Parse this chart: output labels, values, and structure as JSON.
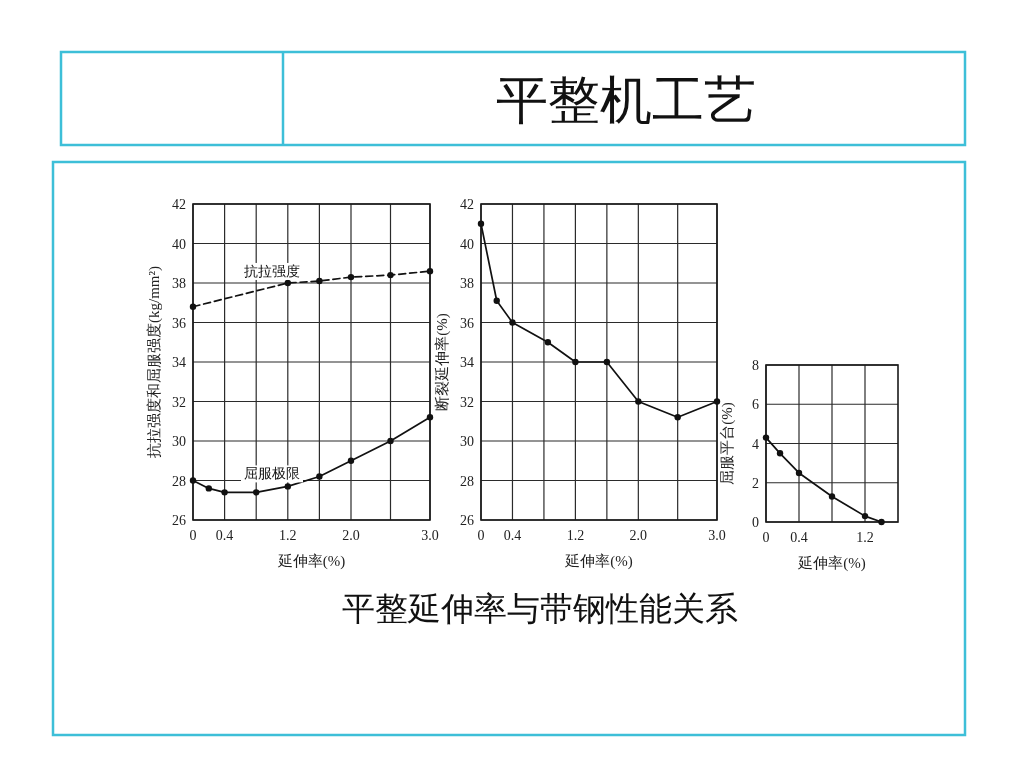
{
  "chart_data": [
    {
      "type": "line",
      "xlabel": "延伸率(%)",
      "ylabel": "抗拉强度和屈服强度(kg/mm²)",
      "xlim": [
        0,
        3
      ],
      "ylim": [
        26,
        42
      ],
      "xticks": [
        0,
        0.4,
        {
          "value": 0.8,
          "label": null
        },
        1.2,
        {
          "value": 1.6,
          "label": null
        },
        {
          "value": 2,
          "label": "2.0"
        },
        {
          "value": 2.5,
          "label": null
        },
        {
          "value": 3,
          "label": "3.0"
        }
      ],
      "yticks": [
        26,
        28,
        30,
        32,
        34,
        36,
        38,
        40,
        42
      ],
      "grid": true,
      "marker": "circle",
      "series": [
        {
          "name": "抗拉强度",
          "color": "#111111",
          "line_style": "dashed",
          "x": [
            0,
            1.2,
            1.6,
            2,
            2.5,
            3
          ],
          "values": [
            36.8,
            38.0,
            38.1,
            38.3,
            38.4,
            38.6
          ]
        },
        {
          "name": "屈服极限",
          "color": "#111111",
          "line_style": "solid",
          "x": [
            0,
            0.2,
            0.4,
            0.8,
            1.2,
            1.6,
            2,
            2.5,
            3
          ],
          "values": [
            28.0,
            27.6,
            27.4,
            27.4,
            27.7,
            28.2,
            29.0,
            30.0,
            31.2
          ]
        }
      ]
    },
    {
      "type": "line",
      "title": "平整机工艺",
      "annotations": [
        "平整延伸率与带钢性能关系"
      ],
      "xlabel": "延伸率(%)",
      "ylabel": "断裂延伸率(%)",
      "xlim": [
        0,
        3
      ],
      "ylim": [
        26,
        42
      ],
      "xticks": [
        0,
        0.4,
        {
          "value": 0.8,
          "label": null
        },
        1.2,
        {
          "value": 1.6,
          "label": null
        },
        {
          "value": 2,
          "label": "2.0"
        },
        {
          "value": 2.5,
          "label": null
        },
        {
          "value": 3,
          "label": "3.0"
        }
      ],
      "yticks": [
        26,
        28,
        30,
        32,
        34,
        36,
        38,
        40,
        42
      ],
      "grid": true,
      "marker": "circle",
      "line_style": "solid",
      "x": [
        0,
        0.2,
        0.4,
        0.85,
        1.2,
        1.6,
        2,
        2.5,
        3
      ],
      "series": [
        {
          "color": "#111111",
          "values": [
            41.0,
            37.1,
            36.0,
            35.0,
            34.0,
            34.0,
            32.0,
            31.2,
            32.0
          ]
        }
      ]
    },
    {
      "type": "line",
      "xlabel": "延伸率(%)",
      "ylabel": "屈服平台(%)",
      "xlim": [
        0,
        1.6
      ],
      "ylim": [
        0,
        8
      ],
      "xticks": [
        0,
        0.4,
        {
          "value": 0.8,
          "label": null
        },
        1.2
      ],
      "yticks": [
        0,
        2,
        4,
        6,
        8
      ],
      "grid": true,
      "marker": "circle",
      "line_style": "solid",
      "x": [
        0,
        0.17,
        0.4,
        0.8,
        1.2,
        1.4
      ],
      "series": [
        {
          "color": "#111111",
          "values": [
            4.3,
            3.5,
            2.5,
            1.3,
            0.3,
            0.0
          ]
        }
      ]
    }
  ]
}
